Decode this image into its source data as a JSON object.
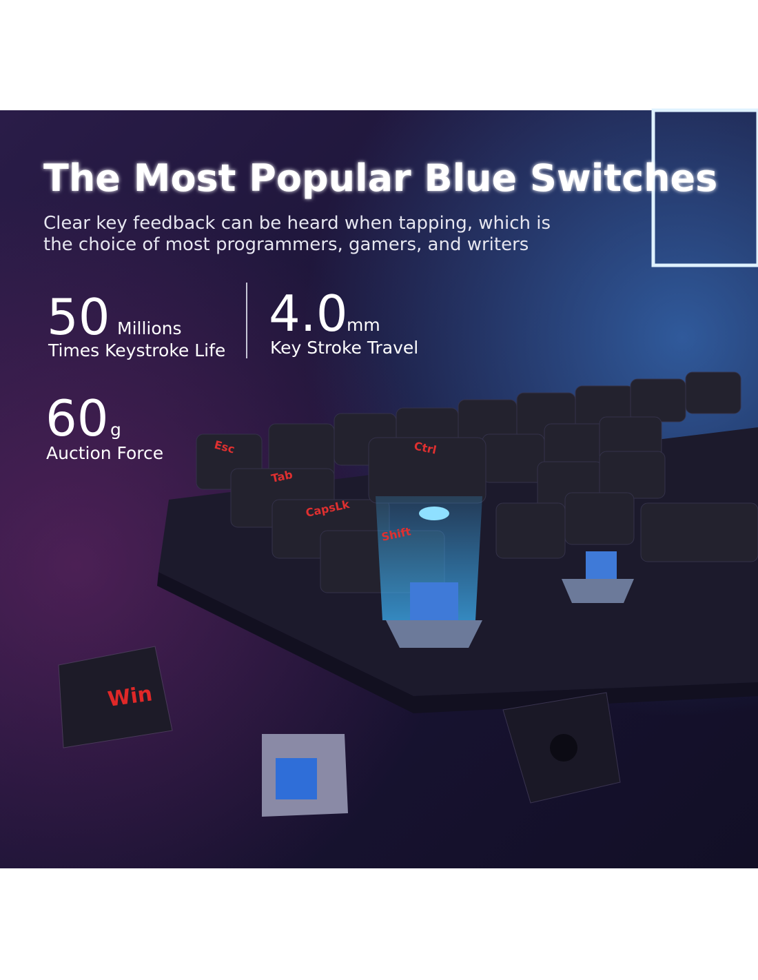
{
  "title": "The Most Popular Blue Switches",
  "subtitle": [
    "Clear key feedback can be heard when tapping, which is",
    "the choice of most programmers, gamers, and writers"
  ],
  "stats": [
    {
      "number": "50",
      "unit": "Millions",
      "label": "Times Keystroke Life"
    },
    {
      "number": "4.0",
      "unit": "mm",
      "label": "Key Stroke Travel"
    },
    {
      "number": "60",
      "unit": "g",
      "label": "Auction Force"
    }
  ],
  "keycaps": [
    "Esc",
    "Tab",
    "CapsLk",
    "Shift",
    "Ctrl",
    "Win"
  ]
}
